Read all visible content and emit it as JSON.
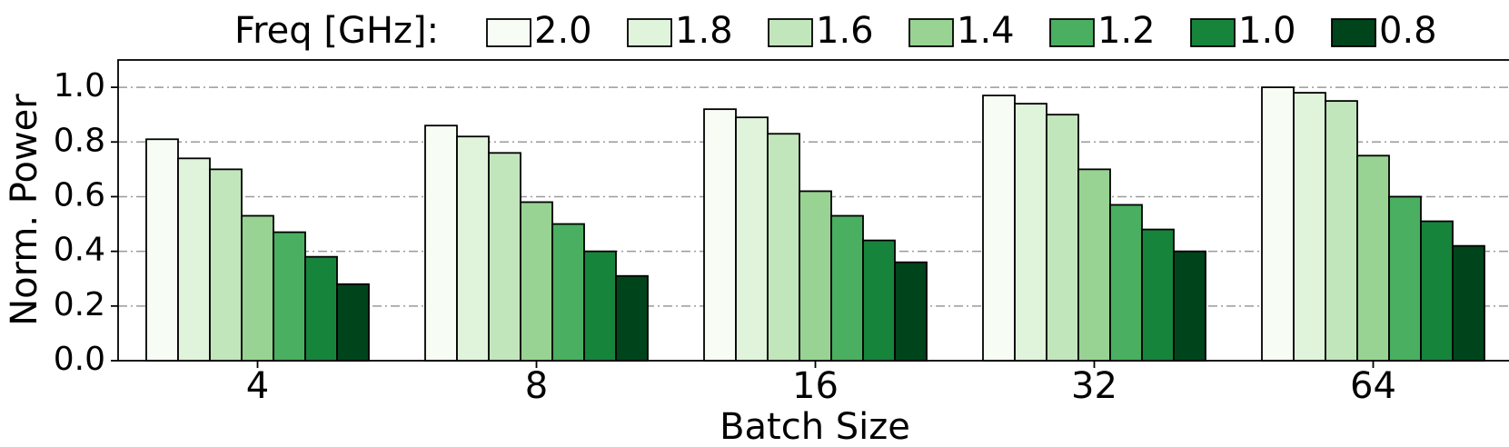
{
  "chart_data": {
    "type": "bar",
    "title": "",
    "xlabel": "Batch Size",
    "ylabel": "Norm. Power",
    "ylim": [
      0,
      1.1
    ],
    "yticks": [
      "0.0",
      "0.2",
      "0.4",
      "0.6",
      "0.8",
      "1.0"
    ],
    "grid": "horizontal dash-dot",
    "legend_title": "Freq [GHz]:",
    "legend_placement": "top",
    "categories": [
      "4",
      "8",
      "16",
      "32",
      "64"
    ],
    "series": [
      {
        "name": "2.0",
        "color": "#f7fcf5",
        "values": [
          0.81,
          0.86,
          0.92,
          0.97,
          1.0
        ]
      },
      {
        "name": "1.8",
        "color": "#e0f3db",
        "values": [
          0.74,
          0.82,
          0.89,
          0.94,
          0.98
        ]
      },
      {
        "name": "1.6",
        "color": "#c2e6bb",
        "values": [
          0.7,
          0.76,
          0.83,
          0.9,
          0.95
        ]
      },
      {
        "name": "1.4",
        "color": "#98d393",
        "values": [
          0.53,
          0.58,
          0.62,
          0.7,
          0.75
        ]
      },
      {
        "name": "1.2",
        "color": "#4aaf61",
        "values": [
          0.47,
          0.5,
          0.53,
          0.57,
          0.6
        ]
      },
      {
        "name": "1.0",
        "color": "#17843b",
        "values": [
          0.38,
          0.4,
          0.44,
          0.48,
          0.51
        ]
      },
      {
        "name": "0.8",
        "color": "#00441b",
        "values": [
          0.28,
          0.31,
          0.36,
          0.4,
          0.42
        ]
      }
    ]
  }
}
